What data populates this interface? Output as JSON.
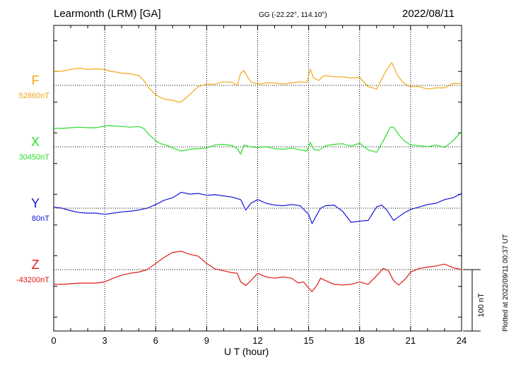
{
  "header": {
    "station": "Learmonth (LRM)  [GA]",
    "coords": "GG (-22.22°, 114.10°)",
    "date": "2022/08/11"
  },
  "footer": {
    "xlabel": "U T (hour)",
    "plotted": "Plotted at 2022/09/11 00:37 UT",
    "scale_label": "100 nT"
  },
  "chart_data": {
    "type": "line",
    "xlabel": "U T (hour)",
    "xlim": [
      0,
      24
    ],
    "xticks": [
      0,
      3,
      6,
      9,
      12,
      15,
      18,
      21,
      24
    ],
    "grid": true,
    "scale_bar_nT": 100,
    "series": [
      {
        "name": "F",
        "baseline_label": "52860nT",
        "baseline": 52860,
        "color": "#f0a818",
        "x": [
          0,
          0.5,
          1,
          1.5,
          2,
          2.5,
          3,
          3.3,
          3.6,
          4,
          4.5,
          5,
          5.3,
          5.6,
          6,
          6.3,
          6.6,
          7,
          7.3,
          7.5,
          7.8,
          8,
          8.5,
          9,
          9.5,
          10,
          10.5,
          10.8,
          11,
          11.2,
          11.4,
          11.6,
          11.9,
          12.2,
          12.5,
          13,
          13.5,
          14,
          14.5,
          14.9,
          15.1,
          15.3,
          15.6,
          15.8,
          16,
          16.5,
          17,
          17.5,
          18,
          18.5,
          19,
          19.3,
          19.6,
          19.9,
          20.2,
          20.5,
          20.8,
          21,
          21.5,
          22,
          22.5,
          23,
          23.5,
          24
        ],
        "values": [
          52883,
          52883,
          52886,
          52888,
          52886,
          52887,
          52886,
          52883,
          52882,
          52880,
          52879,
          52876,
          52868,
          52856,
          52845,
          52840,
          52837,
          52836,
          52833,
          52833,
          52840,
          52845,
          52858,
          52862,
          52862,
          52866,
          52865,
          52860,
          52880,
          52884,
          52874,
          52866,
          52863,
          52862,
          52864,
          52864,
          52862,
          52864,
          52866,
          52865,
          52886,
          52872,
          52868,
          52874,
          52876,
          52874,
          52874,
          52872,
          52873,
          52858,
          52854,
          52870,
          52886,
          52897,
          52878,
          52866,
          52860,
          52858,
          52858,
          52854,
          52856,
          52856,
          52863,
          52863
        ]
      },
      {
        "name": "X",
        "baseline_label": "30450nT",
        "baseline": 30450,
        "color": "#28e028",
        "x": [
          0,
          0.5,
          1,
          1.5,
          2,
          2.5,
          3,
          3.5,
          4,
          4.5,
          5,
          5.3,
          5.6,
          6,
          6.3,
          6.6,
          7,
          7.5,
          8,
          8.5,
          9,
          9.5,
          10,
          10.5,
          10.8,
          11,
          11.2,
          11.5,
          12,
          12.5,
          13,
          13.5,
          14,
          14.5,
          14.9,
          15.1,
          15.3,
          15.6,
          16,
          16.5,
          17,
          17.5,
          18,
          18.5,
          19,
          19.4,
          19.8,
          20,
          20.3,
          20.6,
          21,
          21.5,
          22,
          22.5,
          23,
          23.5,
          24
        ],
        "values": [
          30480,
          30480,
          30481,
          30482,
          30481,
          30481,
          30484,
          30484,
          30483,
          30482,
          30483,
          30480,
          30470,
          30460,
          30455,
          30453,
          30448,
          30443,
          30446,
          30447,
          30448,
          30453,
          30454,
          30452,
          30447,
          30438,
          30453,
          30450,
          30449,
          30450,
          30447,
          30446,
          30448,
          30445,
          30443,
          30457,
          30446,
          30444,
          30452,
          30454,
          30455,
          30451,
          30456,
          30445,
          30441,
          30460,
          30482,
          30482,
          30470,
          30460,
          30453,
          30452,
          30450,
          30453,
          30449,
          30460,
          30475
        ]
      },
      {
        "name": "Y",
        "baseline_label": "80nT",
        "baseline": 80,
        "color": "#1414d8",
        "x": [
          0,
          0.5,
          1,
          1.5,
          2,
          2.5,
          3,
          3.5,
          4,
          4.5,
          5,
          5.5,
          6,
          6.5,
          7,
          7.5,
          8,
          8.5,
          9,
          9.5,
          10,
          10.5,
          11,
          11.3,
          11.6,
          12,
          12.5,
          13,
          13.5,
          14,
          14.5,
          15,
          15.2,
          15.4,
          15.7,
          16,
          16.5,
          17,
          17.5,
          18,
          18.5,
          19,
          19.3,
          19.6,
          20,
          20.3,
          20.6,
          21,
          21.5,
          22,
          22.5,
          23,
          23.5,
          24
        ],
        "values": [
          82,
          80,
          76,
          73,
          72,
          72,
          70,
          72,
          74,
          75,
          77,
          80,
          86,
          93,
          97,
          106,
          103,
          104,
          101,
          102,
          100,
          98,
          94,
          77,
          88,
          94,
          88,
          85,
          84,
          86,
          84,
          70,
          55,
          65,
          80,
          84,
          85,
          75,
          57,
          59,
          60,
          82,
          85,
          77,
          60,
          66,
          72,
          78,
          82,
          86,
          88,
          94,
          97,
          104
        ]
      },
      {
        "name": "Z",
        "baseline_label": "-43200nT",
        "baseline": -43200,
        "color": "#e01818",
        "x": [
          0,
          0.5,
          1,
          1.5,
          2,
          2.5,
          3,
          3.5,
          4,
          4.5,
          5,
          5.5,
          6,
          6.5,
          7,
          7.5,
          8,
          8.5,
          9,
          9.5,
          10,
          10.5,
          10.8,
          11,
          11.3,
          11.6,
          12,
          12.5,
          13,
          13.5,
          14,
          14.4,
          14.7,
          15,
          15.2,
          15.5,
          15.7,
          16,
          16.5,
          17,
          17.5,
          18,
          18.5,
          19,
          19.4,
          19.7,
          20,
          20.3,
          20.7,
          21,
          21.5,
          22,
          22.5,
          23,
          23.5,
          24
        ],
        "values": [
          -43224,
          -43224,
          -43223,
          -43222,
          -43222,
          -43222,
          -43220,
          -43214,
          -43209,
          -43206,
          -43204,
          -43200,
          -43190,
          -43180,
          -43172,
          -43170,
          -43175,
          -43178,
          -43190,
          -43199,
          -43202,
          -43205,
          -43206,
          -43220,
          -43226,
          -43218,
          -43206,
          -43212,
          -43214,
          -43212,
          -43214,
          -43222,
          -43220,
          -43230,
          -43236,
          -43225,
          -43214,
          -43218,
          -43224,
          -43225,
          -43224,
          -43220,
          -43224,
          -43210,
          -43198,
          -43202,
          -43218,
          -43225,
          -43215,
          -43204,
          -43198,
          -43196,
          -43194,
          -43191,
          -43197,
          -43200
        ]
      }
    ]
  }
}
